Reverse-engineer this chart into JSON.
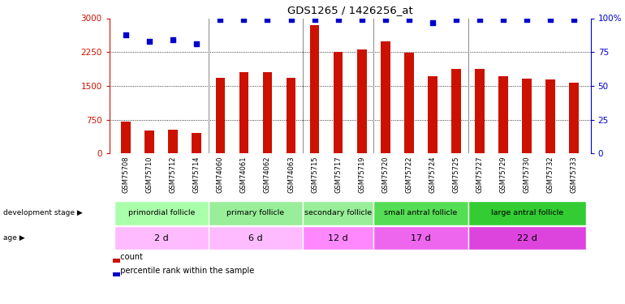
{
  "title": "GDS1265 / 1426256_at",
  "samples": [
    "GSM75708",
    "GSM75710",
    "GSM75712",
    "GSM75714",
    "GSM74060",
    "GSM74061",
    "GSM74062",
    "GSM74063",
    "GSM75715",
    "GSM75717",
    "GSM75719",
    "GSM75720",
    "GSM75722",
    "GSM75724",
    "GSM75725",
    "GSM75727",
    "GSM75729",
    "GSM75730",
    "GSM75732",
    "GSM75733"
  ],
  "bar_values": [
    700,
    510,
    530,
    460,
    1680,
    1800,
    1800,
    1670,
    2840,
    2250,
    2310,
    2490,
    2230,
    1720,
    1870,
    1870,
    1710,
    1660,
    1650,
    1570
  ],
  "percentile_values": [
    88,
    83,
    84,
    81,
    99,
    99,
    99,
    99,
    99,
    99,
    99,
    99,
    99,
    97,
    99,
    99,
    99,
    99,
    99,
    99
  ],
  "ylim_left": [
    0,
    3000
  ],
  "ylim_right": [
    0,
    100
  ],
  "yticks_left": [
    0,
    750,
    1500,
    2250,
    3000
  ],
  "yticks_right": [
    0,
    25,
    50,
    75,
    100
  ],
  "bar_color": "#cc1100",
  "dot_color": "#0000cc",
  "groups": [
    {
      "label": "primordial follicle",
      "age": "2 d",
      "start": 0,
      "end": 4
    },
    {
      "label": "primary follicle",
      "age": "6 d",
      "start": 4,
      "end": 8
    },
    {
      "label": "secondary follicle",
      "age": "12 d",
      "start": 8,
      "end": 11
    },
    {
      "label": "small antral follicle",
      "age": "17 d",
      "start": 11,
      "end": 15
    },
    {
      "label": "large antral follicle",
      "age": "22 d",
      "start": 15,
      "end": 20
    }
  ],
  "dev_colors": [
    "#aaffaa",
    "#aaffaa",
    "#aaffaa",
    "#66ee66",
    "#33dd33"
  ],
  "age_colors": [
    "#ffaaff",
    "#ffaaff",
    "#ff88ff",
    "#ee66ee",
    "#dd44dd"
  ],
  "legend_count_label": "count",
  "legend_pct_label": "percentile rank within the sample",
  "dev_stage_label": "development stage",
  "age_label": "age"
}
